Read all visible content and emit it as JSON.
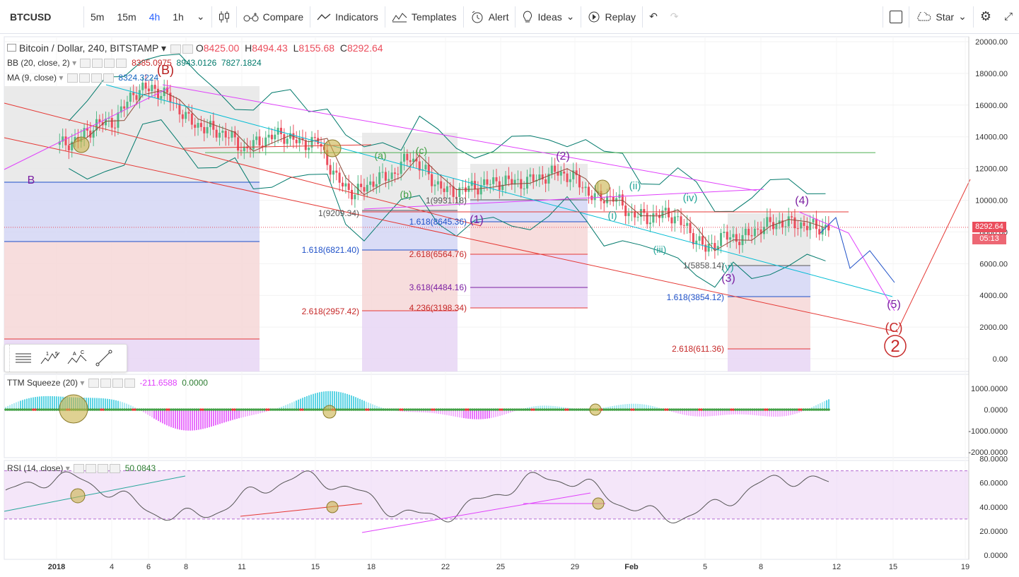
{
  "toolbar": {
    "symbol": "BTCUSD",
    "intervals": [
      "5m",
      "15m",
      "4h",
      "1h"
    ],
    "active_interval": "4h",
    "compare": "Compare",
    "indicators": "Indicators",
    "templates": "Templates",
    "alert": "Alert",
    "ideas": "Ideas",
    "replay": "Replay",
    "star": "Star"
  },
  "legend": {
    "title": "Bitcoin / Dollar, 240, BITSTAMP",
    "o_label": "O",
    "o": "8425.00",
    "h_label": "H",
    "h": "8494.43",
    "l_label": "L",
    "l": "8155.68",
    "c_label": "C",
    "c": "8292.64",
    "bb_label": "BB (20, close, 2)",
    "bb1": "8385.0975",
    "bb2": "8943.0126",
    "bb3": "7827.1824",
    "ma_label": "MA (9, close)",
    "ma": "8324.3224",
    "ttm_label": "TTM Squeeze (20)",
    "ttm1": "-211.6588",
    "ttm2": "0.0000",
    "rsi_label": "RSI (14, close)",
    "rsi": "50.0843"
  },
  "price_tag": {
    "value": "8292.64",
    "time": "05:13"
  },
  "colors": {
    "up": "#53b987",
    "down": "#eb4d5c",
    "magenta": "#e040fb",
    "red": "#e53935",
    "teal": "#00bcd4",
    "blue": "#1e50c8",
    "purple": "#9c27b0",
    "green": "#4caf50"
  },
  "chart_data": [
    {
      "type": "line",
      "name": "price",
      "y_axis_ticks": [
        "20000.00",
        "18000.00",
        "16000.00",
        "14000.00",
        "12000.00",
        "10000.00",
        "8000.00",
        "6000.00",
        "4000.00",
        "2000.00",
        "0.00"
      ],
      "x_axis_ticks": [
        "2018",
        "4",
        "6",
        "8",
        "11",
        "15",
        "18",
        "22",
        "25",
        "29",
        "Feb",
        "5",
        "8",
        "12",
        "15",
        "19"
      ],
      "close_path": [
        [
          "2018-01-01",
          13500
        ],
        [
          "2018-01-02",
          13800
        ],
        [
          "2018-01-03",
          14800
        ],
        [
          "2018-01-04",
          15000
        ],
        [
          "2018-01-05",
          16800
        ],
        [
          "2018-01-06",
          17100
        ],
        [
          "2018-01-07",
          16400
        ],
        [
          "2018-01-08",
          15000
        ],
        [
          "2018-01-09",
          14500
        ],
        [
          "2018-01-10",
          14200
        ],
        [
          "2018-01-11",
          13200
        ],
        [
          "2018-01-12",
          13800
        ],
        [
          "2018-01-13",
          14200
        ],
        [
          "2018-01-14",
          13600
        ],
        [
          "2018-01-15",
          13700
        ],
        [
          "2018-01-16",
          11300
        ],
        [
          "2018-01-17",
          10400
        ],
        [
          "2018-01-18",
          11200
        ],
        [
          "2018-01-19",
          11600
        ],
        [
          "2018-01-20",
          12800
        ],
        [
          "2018-01-21",
          11500
        ],
        [
          "2018-01-22",
          10500
        ],
        [
          "2018-01-23",
          10700
        ],
        [
          "2018-01-24",
          11000
        ],
        [
          "2018-01-25",
          11200
        ],
        [
          "2018-01-26",
          11100
        ],
        [
          "2018-01-27",
          11400
        ],
        [
          "2018-01-28",
          11800
        ],
        [
          "2018-01-29",
          11300
        ],
        [
          "2018-01-30",
          10100
        ],
        [
          "2018-01-31",
          10200
        ],
        [
          "2018-02-01",
          9100
        ],
        [
          "2018-02-02",
          8900
        ],
        [
          "2018-02-03",
          9200
        ],
        [
          "2018-02-04",
          8200
        ],
        [
          "2018-02-05",
          6900
        ],
        [
          "2018-02-06",
          7700
        ],
        [
          "2018-02-07",
          7600
        ],
        [
          "2018-02-08",
          8300
        ],
        [
          "2018-02-09",
          8600
        ],
        [
          "2018-02-10",
          8500
        ],
        [
          "2018-02-11",
          8292
        ]
      ],
      "annotations": [
        "(B)",
        "B",
        "(C)",
        "(1)",
        "(2)",
        "(3)",
        "(4)",
        "(5)",
        "(i)",
        "(ii)",
        "(iii)",
        "(iv)",
        "(v)",
        "(a)",
        "(b)",
        "(c)",
        "2"
      ],
      "fib_levels": [
        "1(9209.34)",
        "1.618(6821.40)",
        "2.618(2957.42)",
        "1(9931.18)",
        "1.618(8645.36)",
        "2.618(6564.76)",
        "3.618(4484.16)",
        "4.236(3198.34)",
        "1(5858.14)",
        "1.618(3854.12)",
        "2.618(611.36)"
      ],
      "horizontal_line": 13000
    },
    {
      "type": "bar",
      "name": "TTM Squeeze (20)",
      "y_axis_ticks": [
        "1000.0000",
        "0.0000",
        "-1000.0000",
        "-2000.0000"
      ],
      "last": -211.6588
    },
    {
      "type": "line",
      "name": "RSI (14, close)",
      "y_axis_ticks": [
        "80.0000",
        "60.0000",
        "40.0000",
        "20.0000",
        "0.0000"
      ],
      "band": [
        30,
        70
      ],
      "last": 50.0843
    }
  ]
}
